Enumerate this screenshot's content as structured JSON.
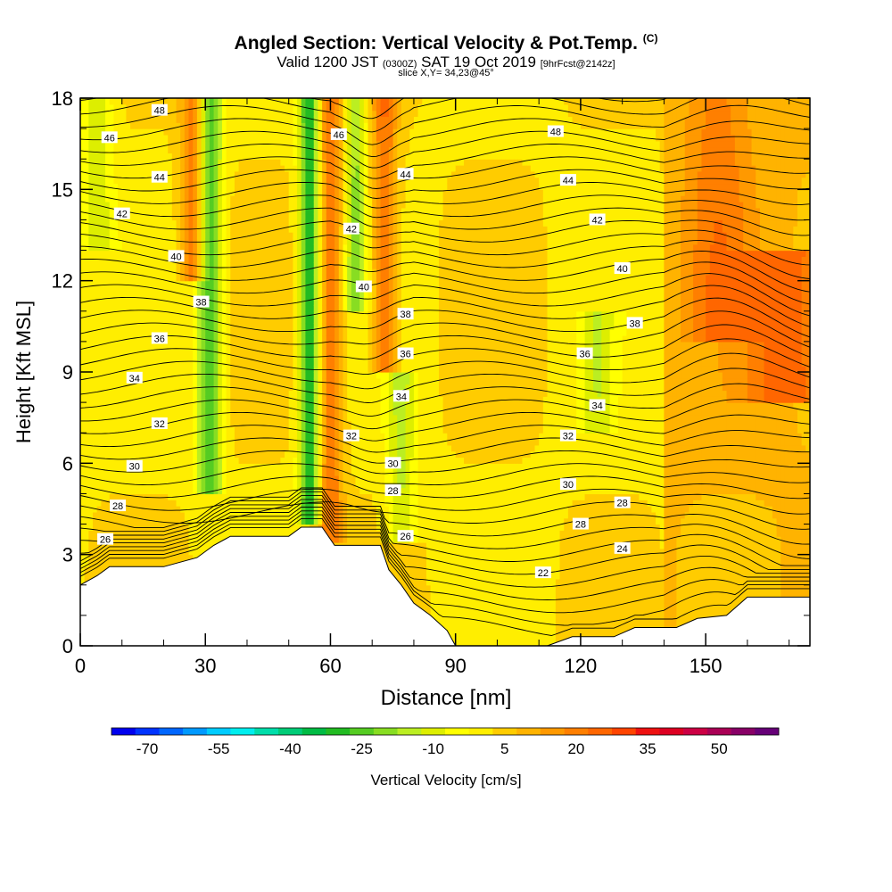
{
  "header": {
    "title": "Angled Section: Vertical Velocity & Pot.Temp.",
    "title_unit": "(C)",
    "valid_prefix": "Valid 1200 JST",
    "valid_utc": "(0300Z)",
    "valid_date": "SAT 19 Oct 2019",
    "forecast": "[9hrFcst@2142z]",
    "slice": "slice X,Y= 34,23@45°"
  },
  "colorbar": {
    "label": "Vertical Velocity [cm/s]",
    "tick_labels": [
      "-70",
      "-55",
      "-40",
      "-25",
      "-10",
      "5",
      "20",
      "35",
      "50"
    ],
    "colors": [
      "#0000ee",
      "#0033ff",
      "#0066ff",
      "#0099ff",
      "#00ccff",
      "#00eeee",
      "#00ddaa",
      "#00cc77",
      "#00bb44",
      "#22bb22",
      "#55cc22",
      "#88dd22",
      "#bbee22",
      "#ddee00",
      "#ffff00",
      "#ffee00",
      "#ffcc00",
      "#ffb300",
      "#ff9900",
      "#ff7f00",
      "#ff6600",
      "#ff4400",
      "#ee1111",
      "#dd0022",
      "#cc0044",
      "#aa0055",
      "#880066",
      "#660077"
    ]
  },
  "chart_data": {
    "type": "heatmap",
    "title": "Angled Section: Vertical Velocity & Pot.Temp.",
    "xlabel": "Distance [nm]",
    "ylabel": "Height [Kft MSL]",
    "xlim": [
      0,
      175
    ],
    "ylim": [
      0,
      18
    ],
    "x_ticks": [
      0,
      30,
      60,
      90,
      120,
      150
    ],
    "y_ticks": [
      0,
      3,
      6,
      9,
      12,
      15,
      18
    ],
    "shading_variable": "Vertical Velocity [cm/s]",
    "contour_variable": "Pot.Temp. (C)",
    "contour_levels": [
      22,
      24,
      26,
      28,
      30,
      32,
      34,
      36,
      38,
      40,
      42,
      44,
      46,
      48
    ],
    "contour_labels": [
      {
        "value": 48,
        "x": 19,
        "y": 17.6
      },
      {
        "value": 46,
        "x": 7,
        "y": 16.7
      },
      {
        "value": 44,
        "x": 19,
        "y": 15.4
      },
      {
        "value": 42,
        "x": 10,
        "y": 14.2
      },
      {
        "value": 40,
        "x": 23,
        "y": 12.8
      },
      {
        "value": 38,
        "x": 29,
        "y": 11.3
      },
      {
        "value": 36,
        "x": 19,
        "y": 10.1
      },
      {
        "value": 34,
        "x": 13,
        "y": 8.8
      },
      {
        "value": 32,
        "x": 19,
        "y": 7.3
      },
      {
        "value": 30,
        "x": 13,
        "y": 5.9
      },
      {
        "value": 28,
        "x": 9,
        "y": 4.6
      },
      {
        "value": 26,
        "x": 6,
        "y": 3.5
      },
      {
        "value": 46,
        "x": 62,
        "y": 16.8
      },
      {
        "value": 44,
        "x": 78,
        "y": 15.5
      },
      {
        "value": 42,
        "x": 65,
        "y": 13.7
      },
      {
        "value": 40,
        "x": 68,
        "y": 11.8
      },
      {
        "value": 38,
        "x": 78,
        "y": 10.9
      },
      {
        "value": 36,
        "x": 78,
        "y": 9.6
      },
      {
        "value": 34,
        "x": 77,
        "y": 8.2
      },
      {
        "value": 32,
        "x": 65,
        "y": 6.9
      },
      {
        "value": 30,
        "x": 75,
        "y": 6.0
      },
      {
        "value": 28,
        "x": 75,
        "y": 5.1
      },
      {
        "value": 26,
        "x": 78,
        "y": 3.6
      },
      {
        "value": 22,
        "x": 111,
        "y": 2.4
      },
      {
        "value": 48,
        "x": 114,
        "y": 16.9
      },
      {
        "value": 44,
        "x": 117,
        "y": 15.3
      },
      {
        "value": 42,
        "x": 124,
        "y": 14.0
      },
      {
        "value": 40,
        "x": 130,
        "y": 12.4
      },
      {
        "value": 38,
        "x": 133,
        "y": 10.6
      },
      {
        "value": 36,
        "x": 121,
        "y": 9.6
      },
      {
        "value": 34,
        "x": 124,
        "y": 7.9
      },
      {
        "value": 32,
        "x": 117,
        "y": 6.9
      },
      {
        "value": 30,
        "x": 117,
        "y": 5.3
      },
      {
        "value": 28,
        "x": 130,
        "y": 4.7
      },
      {
        "value": 28,
        "x": 120,
        "y": 4.0
      },
      {
        "value": 24,
        "x": 130,
        "y": 3.2
      }
    ],
    "terrain": [
      [
        0,
        2.0
      ],
      [
        4,
        2.3
      ],
      [
        7,
        2.6
      ],
      [
        10,
        2.6
      ],
      [
        20,
        2.6
      ],
      [
        28,
        2.9
      ],
      [
        32,
        3.3
      ],
      [
        36,
        3.6
      ],
      [
        50,
        3.6
      ],
      [
        53,
        3.9
      ],
      [
        58,
        3.9
      ],
      [
        61,
        3.3
      ],
      [
        72,
        3.3
      ],
      [
        74,
        2.5
      ],
      [
        77,
        2.0
      ],
      [
        80,
        1.4
      ],
      [
        84,
        1.0
      ],
      [
        88,
        0.5
      ],
      [
        90,
        0.0
      ],
      [
        112,
        0.0
      ],
      [
        118,
        0.3
      ],
      [
        128,
        0.3
      ],
      [
        133,
        0.6
      ],
      [
        143,
        0.6
      ],
      [
        148,
        0.9
      ],
      [
        155,
        1.0
      ],
      [
        160,
        1.6
      ],
      [
        175,
        1.6
      ]
    ],
    "velocity_features": [
      {
        "x_center": 31,
        "width": 3,
        "value": -30,
        "top": 18,
        "bottom": 5
      },
      {
        "x_center": 27,
        "width": 3,
        "value": 20,
        "top": 18,
        "bottom": 12
      },
      {
        "x_center": 55,
        "width": 2.5,
        "value": -35,
        "top": 18,
        "bottom": 4
      },
      {
        "x_center": 60,
        "width": 3,
        "value": 20,
        "top": 18,
        "bottom": 3.5
      },
      {
        "x_center": 66,
        "width": 2.5,
        "value": -20,
        "top": 18,
        "bottom": 11
      },
      {
        "x_center": 73,
        "width": 3,
        "value": 20,
        "top": 18,
        "bottom": 9
      },
      {
        "x_center": 77,
        "width": 3.5,
        "value": -15,
        "top": 9,
        "bottom": 3.5
      },
      {
        "x_center": 124,
        "width": 4,
        "value": -12,
        "top": 11,
        "bottom": 7
      },
      {
        "x_center": 170,
        "width": 10,
        "value": 18,
        "top": 13,
        "bottom": 8
      },
      {
        "x_center": 153,
        "width": 8,
        "value": 12,
        "top": 18,
        "bottom": 10
      },
      {
        "x_center": 4,
        "width": 4,
        "value": -12,
        "top": 18,
        "bottom": 13
      }
    ],
    "grid": false,
    "legend": "colorbar-bottom"
  }
}
